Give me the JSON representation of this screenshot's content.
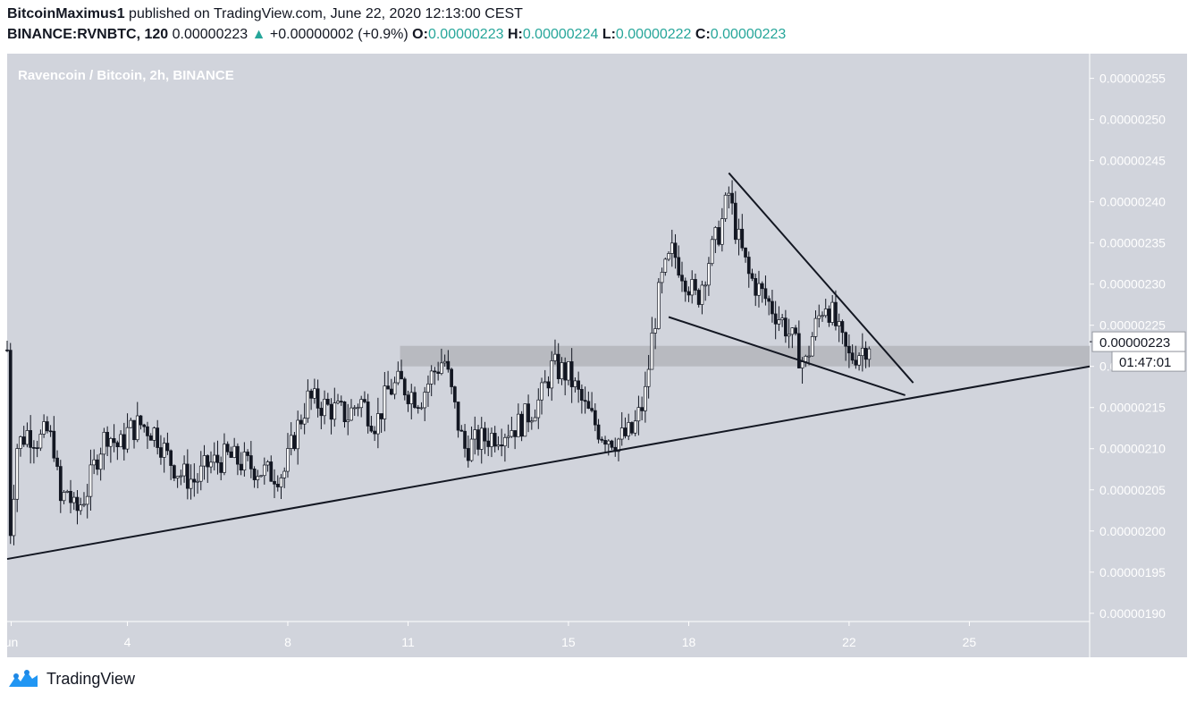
{
  "header": {
    "author": "BitcoinMaximus1",
    "published_text": "published on TradingView.com, June 22, 2020 12:13:00 CEST",
    "symbol": "BINANCE:RVNBTC, 120",
    "last": "0.00000223",
    "change_arrow": "▲",
    "change": "+0.00000002 (+0.9%)",
    "o_label": "O:",
    "o_value": "0.00000223",
    "h_label": "H:",
    "h_value": "0.00000224",
    "l_label": "L:",
    "l_value": "0.00000222",
    "c_label": "C:",
    "c_value": "0.00000223"
  },
  "footer": {
    "brand": "TradingView",
    "logo_icon": "tradingview-logo-icon"
  },
  "colors": {
    "pane_bg": "#d1d4dc",
    "candle_up": "#ffffff",
    "candle_down": "#131722",
    "zone": "#b8bac0",
    "change_up": "#26a69a"
  },
  "chart_data": {
    "type": "candlestick",
    "title": "Ravencoin / Bitcoin, 2h, BINANCE",
    "y_ticks": [
      "0.00000255",
      "0.00000250",
      "0.00000245",
      "0.00000240",
      "0.00000235",
      "0.00000230",
      "0.00000225",
      "0.00000220",
      "0.00000215",
      "0.00000210",
      "0.00000205",
      "0.00000200",
      "0.00000195",
      "0.00000190"
    ],
    "x_ticks": [
      {
        "label": "un",
        "day": 1.1
      },
      {
        "label": "4",
        "day": 4
      },
      {
        "label": "8",
        "day": 8
      },
      {
        "label": "11",
        "day": 11
      },
      {
        "label": "15",
        "day": 15
      },
      {
        "label": "18",
        "day": 18
      },
      {
        "label": "22",
        "day": 22
      },
      {
        "label": "25",
        "day": 25
      }
    ],
    "x_range_days": [
      1.0,
      28.0
    ],
    "ylim": [
      1.89e-06,
      2.58e-06
    ],
    "last_price_label": "0.00000223",
    "countdown_label": "01:47:01",
    "approx_close_path": [
      [
        1.0,
        2.22e-06
      ],
      [
        1.1,
        1.96e-06
      ],
      [
        1.2,
        2.1e-06
      ],
      [
        1.5,
        2.12e-06
      ],
      [
        1.8,
        2.11e-06
      ],
      [
        2.0,
        2.12e-06
      ],
      [
        2.2,
        2.1e-06
      ],
      [
        2.3,
        2.03e-06
      ],
      [
        2.5,
        2.05e-06
      ],
      [
        2.7,
        2.02e-06
      ],
      [
        3.0,
        2.05e-06
      ],
      [
        3.3,
        2.1e-06
      ],
      [
        3.5,
        2.12e-06
      ],
      [
        3.8,
        2.1e-06
      ],
      [
        4.0,
        2.12e-06
      ],
      [
        4.3,
        2.13e-06
      ],
      [
        4.7,
        2.12e-06
      ],
      [
        5.0,
        2.09e-06
      ],
      [
        5.3,
        2.07e-06
      ],
      [
        5.7,
        2.06e-06
      ],
      [
        6.0,
        2.08e-06
      ],
      [
        6.5,
        2.09e-06
      ],
      [
        7.0,
        2.08e-06
      ],
      [
        7.5,
        2.07e-06
      ],
      [
        7.9,
        2.07e-06
      ],
      [
        8.2,
        2.12e-06
      ],
      [
        8.5,
        2.16e-06
      ],
      [
        9.0,
        2.15e-06
      ],
      [
        9.5,
        2.14e-06
      ],
      [
        9.8,
        2.16e-06
      ],
      [
        10.2,
        2.13e-06
      ],
      [
        10.5,
        2.17e-06
      ],
      [
        10.8,
        2.18e-06
      ],
      [
        11.0,
        2.17e-06
      ],
      [
        11.3,
        2.16e-06
      ],
      [
        11.6,
        2.19e-06
      ],
      [
        11.9,
        2.21e-06
      ],
      [
        12.2,
        2.14e-06
      ],
      [
        12.4,
        2.1e-06
      ],
      [
        12.8,
        2.11e-06
      ],
      [
        13.3,
        2.12e-06
      ],
      [
        13.8,
        2.13e-06
      ],
      [
        14.3,
        2.16e-06
      ],
      [
        14.6,
        2.2e-06
      ],
      [
        15.0,
        2.19e-06
      ],
      [
        15.4,
        2.15e-06
      ],
      [
        15.8,
        2.12e-06
      ],
      [
        16.2,
        2.11e-06
      ],
      [
        16.6,
        2.12e-06
      ],
      [
        16.9,
        2.16e-06
      ],
      [
        17.1,
        2.24e-06
      ],
      [
        17.3,
        2.3e-06
      ],
      [
        17.6,
        2.34e-06
      ],
      [
        17.9,
        2.31e-06
      ],
      [
        18.2,
        2.28e-06
      ],
      [
        18.5,
        2.33e-06
      ],
      [
        18.8,
        2.37e-06
      ],
      [
        19.0,
        2.41e-06
      ],
      [
        19.2,
        2.36e-06
      ],
      [
        19.5,
        2.31e-06
      ],
      [
        19.8,
        2.29e-06
      ],
      [
        20.1,
        2.27e-06
      ],
      [
        20.4,
        2.25e-06
      ],
      [
        20.7,
        2.22e-06
      ],
      [
        20.9,
        2.2e-06
      ],
      [
        21.1,
        2.24e-06
      ],
      [
        21.4,
        2.28e-06
      ],
      [
        21.6,
        2.26e-06
      ],
      [
        21.8,
        2.23e-06
      ],
      [
        22.0,
        2.21e-06
      ],
      [
        22.3,
        2.22e-06
      ],
      [
        22.5,
        2.23e-06
      ]
    ],
    "support_zone": {
      "from": 2.2e-06,
      "to": 2.225e-06,
      "start_day": 10.8
    },
    "trendlines": [
      {
        "name": "ascending-support",
        "from": [
          1.0,
          1.966e-06
        ],
        "to": [
          28.0,
          2.2e-06
        ]
      },
      {
        "name": "descending-resistance",
        "from": [
          19.0,
          2.435e-06
        ],
        "to": [
          23.6,
          2.18e-06
        ]
      },
      {
        "name": "lower-wedge-line",
        "from": [
          17.5,
          2.26e-06
        ],
        "to": [
          23.4,
          2.165e-06
        ]
      }
    ]
  }
}
